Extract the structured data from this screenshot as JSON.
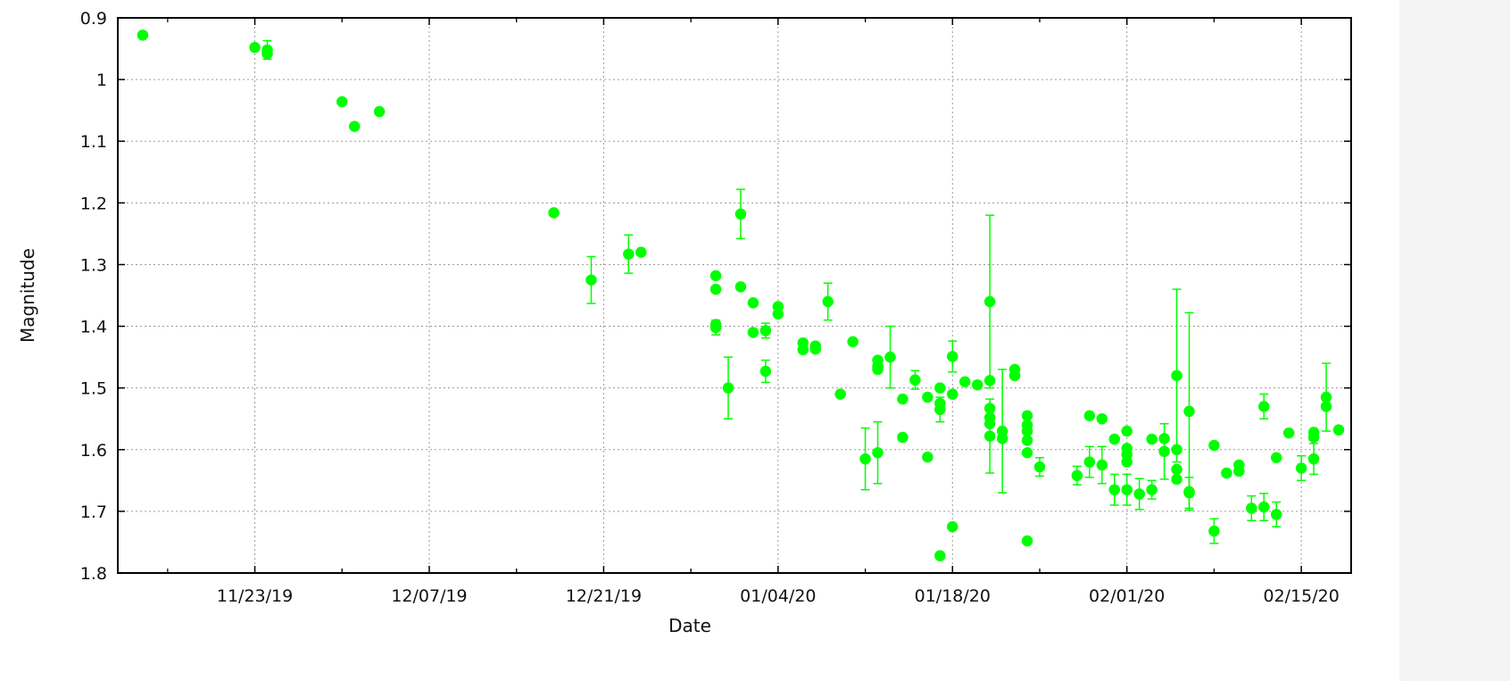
{
  "chart_data": {
    "type": "scatter",
    "title": "",
    "xlabel": "Date",
    "ylabel": "Magnitude",
    "y_axis_inverted": true,
    "ylim": [
      0.9,
      1.8
    ],
    "xlim": [
      "2019-11-12",
      "2020-02-19"
    ],
    "grid": true,
    "point_color": "#00ff00",
    "x_ticks": [
      {
        "date": "2019-11-23",
        "label": "11/23/19"
      },
      {
        "date": "2019-12-07",
        "label": "12/07/19"
      },
      {
        "date": "2019-12-21",
        "label": "12/21/19"
      },
      {
        "date": "2020-01-04",
        "label": "01/04/20"
      },
      {
        "date": "2020-01-18",
        "label": "01/18/20"
      },
      {
        "date": "2020-02-01",
        "label": "02/01/20"
      },
      {
        "date": "2020-02-15",
        "label": "02/15/20"
      }
    ],
    "y_ticks": [
      "0.9",
      "1",
      "1.1",
      "1.2",
      "1.3",
      "1.4",
      "1.5",
      "1.6",
      "1.7",
      "1.8"
    ],
    "points": [
      {
        "x": "2019-11-14",
        "y": 0.928
      },
      {
        "x": "2019-11-23",
        "y": 0.948
      },
      {
        "x": "2019-11-24",
        "y": 0.952,
        "err": 0.015
      },
      {
        "x": "2019-11-24",
        "y": 0.958
      },
      {
        "x": "2019-11-30",
        "y": 1.036
      },
      {
        "x": "2019-12-01",
        "y": 1.076
      },
      {
        "x": "2019-12-03",
        "y": 1.052
      },
      {
        "x": "2019-12-17",
        "y": 1.216
      },
      {
        "x": "2019-12-20",
        "y": 1.325,
        "err": 0.038
      },
      {
        "x": "2019-12-23",
        "y": 1.283,
        "err": 0.031
      },
      {
        "x": "2019-12-24",
        "y": 1.28
      },
      {
        "x": "2019-12-30",
        "y": 1.318
      },
      {
        "x": "2019-12-30",
        "y": 1.34
      },
      {
        "x": "2019-12-30",
        "y": 1.397
      },
      {
        "x": "2019-12-30",
        "y": 1.402,
        "err": 0.012
      },
      {
        "x": "2019-12-31",
        "y": 1.5,
        "err": 0.05
      },
      {
        "x": "2020-01-01",
        "y": 1.336
      },
      {
        "x": "2020-01-01",
        "y": 1.218,
        "err": 0.04
      },
      {
        "x": "2020-01-02",
        "y": 1.362
      },
      {
        "x": "2020-01-02",
        "y": 1.41
      },
      {
        "x": "2020-01-03",
        "y": 1.407,
        "err": 0.012
      },
      {
        "x": "2020-01-03",
        "y": 1.473,
        "err": 0.018
      },
      {
        "x": "2020-01-04",
        "y": 1.368
      },
      {
        "x": "2020-01-04",
        "y": 1.38
      },
      {
        "x": "2020-01-06",
        "y": 1.427
      },
      {
        "x": "2020-01-06",
        "y": 1.438
      },
      {
        "x": "2020-01-07",
        "y": 1.432
      },
      {
        "x": "2020-01-07",
        "y": 1.437
      },
      {
        "x": "2020-01-08",
        "y": 1.36,
        "err": 0.03
      },
      {
        "x": "2020-01-09",
        "y": 1.51
      },
      {
        "x": "2020-01-10",
        "y": 1.425
      },
      {
        "x": "2020-01-11",
        "y": 1.615,
        "err": 0.05
      },
      {
        "x": "2020-01-12",
        "y": 1.605,
        "err": 0.05
      },
      {
        "x": "2020-01-12",
        "y": 1.455
      },
      {
        "x": "2020-01-12",
        "y": 1.465
      },
      {
        "x": "2020-01-12",
        "y": 1.47
      },
      {
        "x": "2020-01-13",
        "y": 1.45,
        "err": 0.05
      },
      {
        "x": "2020-01-14",
        "y": 1.58
      },
      {
        "x": "2020-01-14",
        "y": 1.518
      },
      {
        "x": "2020-01-15",
        "y": 1.487,
        "err": 0.015
      },
      {
        "x": "2020-01-16",
        "y": 1.515
      },
      {
        "x": "2020-01-16",
        "y": 1.612
      },
      {
        "x": "2020-01-17",
        "y": 1.525
      },
      {
        "x": "2020-01-17",
        "y": 1.5
      },
      {
        "x": "2020-01-17",
        "y": 1.772
      },
      {
        "x": "2020-01-17",
        "y": 1.535,
        "err": 0.02
      },
      {
        "x": "2020-01-18",
        "y": 1.449,
        "err": 0.025
      },
      {
        "x": "2020-01-18",
        "y": 1.51
      },
      {
        "x": "2020-01-18",
        "y": 1.725
      },
      {
        "x": "2020-01-19",
        "y": 1.49
      },
      {
        "x": "2020-01-20",
        "y": 1.495
      },
      {
        "x": "2020-01-21",
        "y": 1.488
      },
      {
        "x": "2020-01-21",
        "y": 1.36,
        "err": 0.14
      },
      {
        "x": "2020-01-21",
        "y": 1.533
      },
      {
        "x": "2020-01-21",
        "y": 1.548
      },
      {
        "x": "2020-01-21",
        "y": 1.558
      },
      {
        "x": "2020-01-21",
        "y": 1.578,
        "err": 0.06
      },
      {
        "x": "2020-01-22",
        "y": 1.57,
        "err": 0.1
      },
      {
        "x": "2020-01-22",
        "y": 1.582
      },
      {
        "x": "2020-01-23",
        "y": 1.47
      },
      {
        "x": "2020-01-23",
        "y": 1.48
      },
      {
        "x": "2020-01-24",
        "y": 1.605
      },
      {
        "x": "2020-01-24",
        "y": 1.545
      },
      {
        "x": "2020-01-24",
        "y": 1.56
      },
      {
        "x": "2020-01-24",
        "y": 1.57
      },
      {
        "x": "2020-01-24",
        "y": 1.585
      },
      {
        "x": "2020-01-24",
        "y": 1.748
      },
      {
        "x": "2020-01-25",
        "y": 1.628,
        "err": 0.015
      },
      {
        "x": "2020-01-28",
        "y": 1.642,
        "err": 0.015
      },
      {
        "x": "2020-01-29",
        "y": 1.545
      },
      {
        "x": "2020-01-29",
        "y": 1.62,
        "err": 0.025
      },
      {
        "x": "2020-01-30",
        "y": 1.55
      },
      {
        "x": "2020-01-30",
        "y": 1.625,
        "err": 0.03
      },
      {
        "x": "2020-01-31",
        "y": 1.583
      },
      {
        "x": "2020-01-31",
        "y": 1.665,
        "err": 0.025
      },
      {
        "x": "2020-02-01",
        "y": 1.598
      },
      {
        "x": "2020-02-01",
        "y": 1.608
      },
      {
        "x": "2020-02-01",
        "y": 1.62
      },
      {
        "x": "2020-02-01",
        "y": 1.665,
        "err": 0.025
      },
      {
        "x": "2020-02-01",
        "y": 1.57
      },
      {
        "x": "2020-02-02",
        "y": 1.672,
        "err": 0.025
      },
      {
        "x": "2020-02-03",
        "y": 1.665,
        "err": 0.015
      },
      {
        "x": "2020-02-03",
        "y": 1.583
      },
      {
        "x": "2020-02-04",
        "y": 1.603,
        "err": 0.045
      },
      {
        "x": "2020-02-04",
        "y": 1.582
      },
      {
        "x": "2020-02-05",
        "y": 1.632
      },
      {
        "x": "2020-02-05",
        "y": 1.6
      },
      {
        "x": "2020-02-05",
        "y": 1.648
      },
      {
        "x": "2020-02-05",
        "y": 1.48,
        "err": 0.14
      },
      {
        "x": "2020-02-06",
        "y": 1.67,
        "err": 0.025
      },
      {
        "x": "2020-02-06",
        "y": 1.538,
        "err": 0.16
      },
      {
        "x": "2020-02-06",
        "y": 1.668
      },
      {
        "x": "2020-02-08",
        "y": 1.593
      },
      {
        "x": "2020-02-08",
        "y": 1.732,
        "err": 0.02
      },
      {
        "x": "2020-02-09",
        "y": 1.638
      },
      {
        "x": "2020-02-10",
        "y": 1.625
      },
      {
        "x": "2020-02-10",
        "y": 1.635
      },
      {
        "x": "2020-02-11",
        "y": 1.695,
        "err": 0.02
      },
      {
        "x": "2020-02-12",
        "y": 1.53,
        "err": 0.02
      },
      {
        "x": "2020-02-12",
        "y": 1.693,
        "err": 0.022
      },
      {
        "x": "2020-02-13",
        "y": 1.613
      },
      {
        "x": "2020-02-13",
        "y": 1.705,
        "err": 0.02
      },
      {
        "x": "2020-02-14",
        "y": 1.573
      },
      {
        "x": "2020-02-15",
        "y": 1.63,
        "err": 0.02
      },
      {
        "x": "2020-02-16",
        "y": 1.572
      },
      {
        "x": "2020-02-16",
        "y": 1.58
      },
      {
        "x": "2020-02-16",
        "y": 1.615,
        "err": 0.025
      },
      {
        "x": "2020-02-17",
        "y": 1.515,
        "err": 0.055
      },
      {
        "x": "2020-02-17",
        "y": 1.53
      },
      {
        "x": "2020-02-18",
        "y": 1.568
      }
    ]
  }
}
